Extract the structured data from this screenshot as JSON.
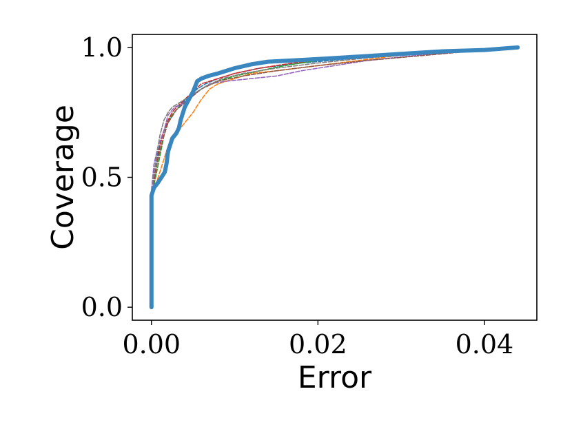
{
  "chart_data": {
    "type": "line",
    "xlabel": "Error",
    "ylabel": "Coverage",
    "xlim": [
      -0.0023,
      0.0463
    ],
    "ylim": [
      -0.05,
      1.05
    ],
    "xticks": [
      {
        "value": 0.0,
        "label": "0.00"
      },
      {
        "value": 0.02,
        "label": "0.02"
      },
      {
        "value": 0.04,
        "label": "0.04"
      }
    ],
    "yticks": [
      {
        "value": 0.0,
        "label": "0.0"
      },
      {
        "value": 0.5,
        "label": "0.5"
      },
      {
        "value": 1.0,
        "label": "1.0"
      }
    ],
    "grid": false,
    "legend": "none",
    "series": [
      {
        "color": "#1f77b4",
        "style": "dashed",
        "x": [
          0.0,
          0.0,
          0.0003,
          0.0008,
          0.0015,
          0.0025,
          0.0035,
          0.0045,
          0.0055,
          0.0065,
          0.008,
          0.01,
          0.013,
          0.018,
          0.025,
          0.035,
          0.044
        ],
        "y": [
          0.0,
          0.44,
          0.52,
          0.6,
          0.68,
          0.74,
          0.78,
          0.81,
          0.84,
          0.86,
          0.88,
          0.9,
          0.92,
          0.94,
          0.96,
          0.98,
          1.0
        ]
      },
      {
        "color": "#ff7f0e",
        "style": "dashed",
        "x": [
          0.0,
          0.0,
          0.0005,
          0.001,
          0.0015,
          0.002,
          0.003,
          0.004,
          0.005,
          0.006,
          0.007,
          0.008,
          0.01,
          0.012,
          0.015,
          0.02,
          0.025,
          0.03,
          0.035,
          0.04,
          0.044
        ],
        "y": [
          0.0,
          0.42,
          0.47,
          0.52,
          0.57,
          0.62,
          0.67,
          0.71,
          0.75,
          0.8,
          0.84,
          0.86,
          0.88,
          0.9,
          0.91,
          0.93,
          0.95,
          0.97,
          0.98,
          0.99,
          1.0
        ]
      },
      {
        "color": "#2ca02c",
        "style": "dashed",
        "x": [
          0.0,
          0.0,
          0.0005,
          0.001,
          0.0015,
          0.002,
          0.003,
          0.004,
          0.005,
          0.0065,
          0.008,
          0.01,
          0.013,
          0.016,
          0.02,
          0.025,
          0.03,
          0.035,
          0.04,
          0.044
        ],
        "y": [
          0.0,
          0.43,
          0.5,
          0.58,
          0.66,
          0.72,
          0.76,
          0.79,
          0.82,
          0.85,
          0.87,
          0.89,
          0.91,
          0.93,
          0.95,
          0.96,
          0.97,
          0.98,
          0.99,
          1.0
        ]
      },
      {
        "color": "#d62728",
        "style": "dashed",
        "x": [
          0.0,
          0.0,
          0.0005,
          0.001,
          0.0015,
          0.002,
          0.0025,
          0.003,
          0.004,
          0.005,
          0.006,
          0.008,
          0.01,
          0.013,
          0.017,
          0.022,
          0.03,
          0.038,
          0.044
        ],
        "y": [
          0.0,
          0.43,
          0.52,
          0.62,
          0.68,
          0.72,
          0.75,
          0.77,
          0.8,
          0.83,
          0.86,
          0.88,
          0.9,
          0.92,
          0.94,
          0.96,
          0.98,
          0.99,
          1.0
        ]
      },
      {
        "color": "#9467bd",
        "style": "dashed",
        "x": [
          0.0,
          0.0,
          0.0003,
          0.0008,
          0.0015,
          0.002,
          0.0028,
          0.0035,
          0.0045,
          0.0055,
          0.007,
          0.009,
          0.012,
          0.015,
          0.018,
          0.022,
          0.026,
          0.032,
          0.038,
          0.044
        ],
        "y": [
          0.0,
          0.45,
          0.55,
          0.62,
          0.68,
          0.74,
          0.77,
          0.78,
          0.8,
          0.83,
          0.86,
          0.87,
          0.88,
          0.89,
          0.91,
          0.93,
          0.95,
          0.97,
          0.985,
          1.0
        ]
      },
      {
        "color": "#8c564b",
        "style": "dashed",
        "x": [
          0.0,
          0.0,
          0.0005,
          0.001,
          0.0015,
          0.002,
          0.003,
          0.0045,
          0.006,
          0.008,
          0.011,
          0.015,
          0.02,
          0.026,
          0.033,
          0.04,
          0.044
        ],
        "y": [
          0.0,
          0.43,
          0.53,
          0.6,
          0.66,
          0.71,
          0.76,
          0.8,
          0.84,
          0.87,
          0.89,
          0.91,
          0.93,
          0.95,
          0.97,
          0.99,
          1.0
        ]
      },
      {
        "color": "#7f7f7f",
        "style": "dashed",
        "x": [
          0.0,
          0.0,
          0.0005,
          0.001,
          0.0015,
          0.002,
          0.0025,
          0.003,
          0.004,
          0.005,
          0.0065,
          0.0085,
          0.011,
          0.015,
          0.02,
          0.026,
          0.033,
          0.04,
          0.044
        ],
        "y": [
          0.0,
          0.43,
          0.56,
          0.66,
          0.72,
          0.75,
          0.77,
          0.78,
          0.8,
          0.82,
          0.85,
          0.88,
          0.9,
          0.92,
          0.94,
          0.96,
          0.98,
          0.99,
          1.0
        ]
      },
      {
        "color": "#3a87c0",
        "style": "solid",
        "x": [
          0.0,
          0.0,
          0.0003,
          0.0008,
          0.0012,
          0.0016,
          0.0018,
          0.002,
          0.0025,
          0.003,
          0.0033,
          0.0035,
          0.004,
          0.0045,
          0.005,
          0.0055,
          0.006,
          0.0068,
          0.008,
          0.01,
          0.012,
          0.014,
          0.017,
          0.02,
          0.025,
          0.03,
          0.035,
          0.04,
          0.044
        ],
        "y": [
          0.0,
          0.43,
          0.46,
          0.48,
          0.5,
          0.52,
          0.55,
          0.6,
          0.65,
          0.67,
          0.69,
          0.72,
          0.77,
          0.8,
          0.83,
          0.87,
          0.88,
          0.89,
          0.9,
          0.92,
          0.935,
          0.945,
          0.95,
          0.955,
          0.965,
          0.975,
          0.985,
          0.99,
          1.0
        ]
      }
    ]
  }
}
